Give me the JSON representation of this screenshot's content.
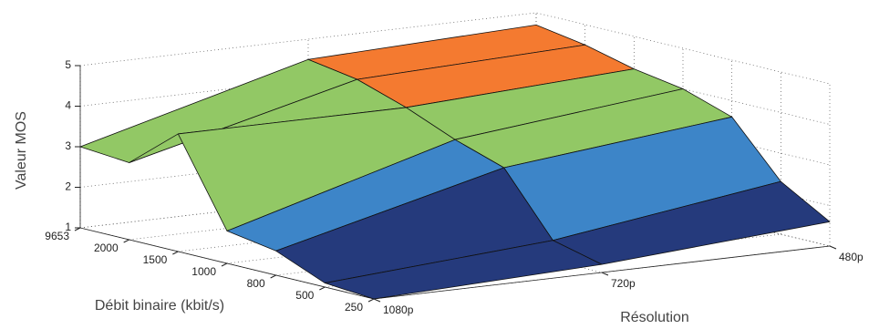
{
  "chart_data": {
    "type": "surface",
    "zlabel": "Valeur MOS",
    "xlabel": "Débit binaire (kbit/s)",
    "ylabel": "Résolution",
    "bitrates": [
      "9653",
      "2000",
      "1500",
      "1000",
      "800",
      "500",
      "250"
    ],
    "resolutions": [
      "1080p",
      "720p",
      "480p"
    ],
    "z": [
      [
        3.0,
        2.9,
        3.9,
        1.8,
        1.6,
        1.1,
        1.0
      ],
      [
        4.5,
        4.3,
        3.9,
        3.4,
        3.0,
        1.5,
        1.2
      ],
      [
        4.7,
        4.5,
        4.2,
        4.0,
        3.6,
        2.3,
        1.6
      ]
    ],
    "zlim": [
      1,
      5
    ],
    "zticks": [
      1,
      2,
      3,
      4,
      5
    ],
    "colors": [
      "#253a7c",
      "#3d85c8",
      "#92c865",
      "#f47a30"
    ],
    "grid": true
  }
}
